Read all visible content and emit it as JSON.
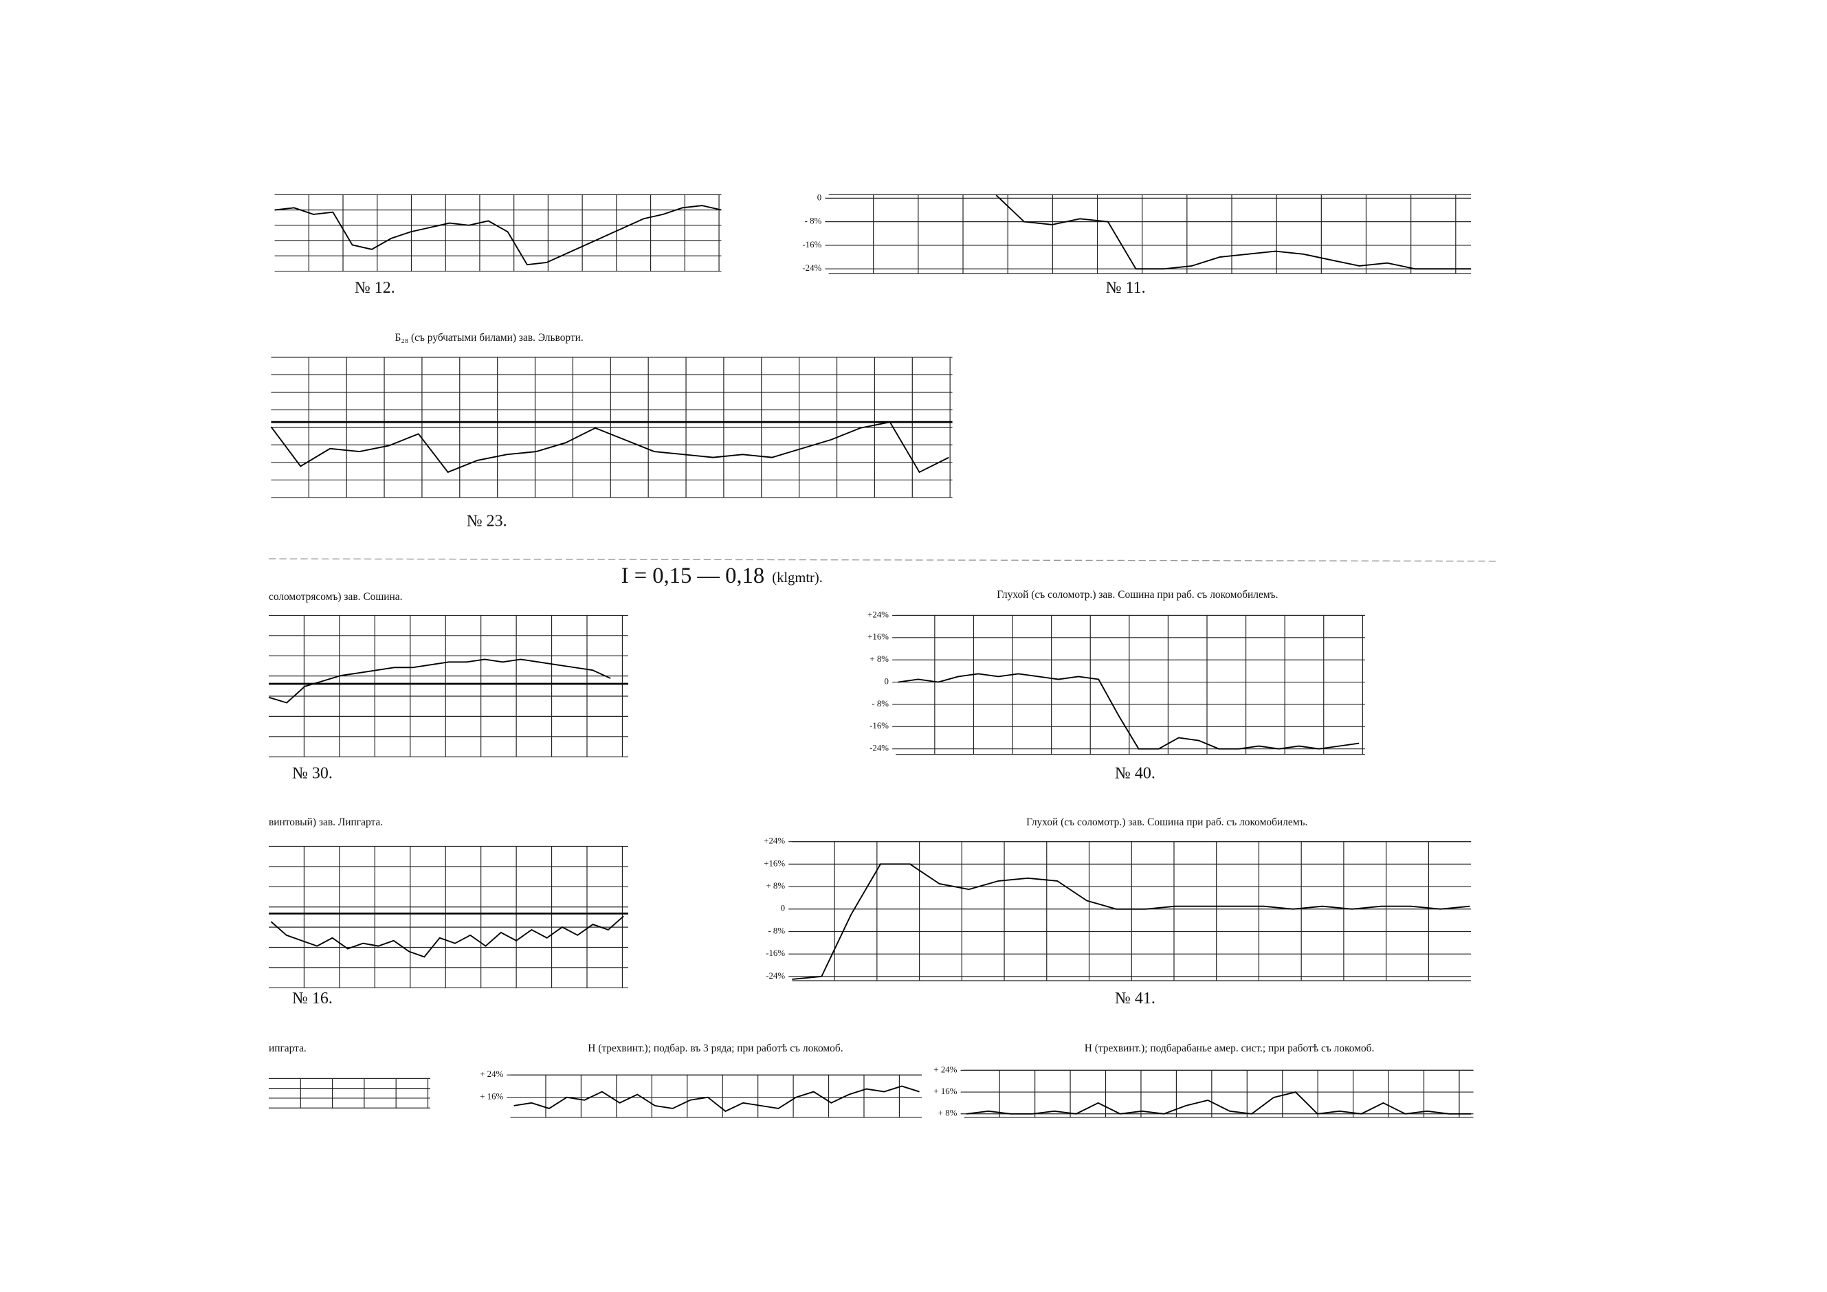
{
  "heading": "I = 0,15 — 0,18",
  "heading_unit": "(klgmtr).",
  "panels": [
    {
      "label": "№ 12.",
      "ylim": [
        -30,
        5
      ],
      "values": [
        -2,
        -1,
        -4,
        -3,
        -18,
        -20,
        -15,
        -12,
        -10,
        -8,
        -9,
        -7,
        -12,
        -27,
        -26,
        -22,
        -18,
        -14,
        -10,
        -6,
        -4,
        -1,
        0,
        -2
      ]
    },
    {
      "label": "№ 11.",
      "ylim": [
        -25.6,
        1.2
      ],
      "yticks": [
        0,
        {
          "value": -8,
          "label": "- 8%"
        },
        {
          "value": -16,
          "label": "-16%"
        },
        {
          "value": -24,
          "label": "-24%"
        }
      ],
      "values": [
        null,
        null,
        null,
        null,
        null,
        null,
        1,
        -8,
        -9,
        -7,
        -8,
        -24,
        -24,
        -23,
        -20,
        -19,
        -18,
        -19,
        -21,
        -23,
        -22,
        -24,
        -24,
        -24
      ]
    },
    {
      "label": "№ 23.",
      "caption": "Б₂₈ (съ рубчатыми билами) зав. Эльворти.",
      "ylim": [
        -25.6,
        22
      ],
      "values": [
        -1.6,
        -15,
        -9,
        -10,
        -8,
        -4,
        -17,
        -13,
        -11,
        -10,
        -7,
        -2,
        -6,
        -10,
        -11,
        -12,
        -11,
        -12,
        -9,
        -6,
        -2,
        0,
        -17,
        -12
      ]
    },
    {
      "label": "№ 30.",
      "caption": "соломотрясомъ) зав. Сошина.",
      "ylim": [
        -26.9,
        25.2
      ],
      "values": [
        -5,
        -7,
        -1,
        1,
        3,
        4,
        5,
        6,
        6,
        7,
        8,
        8,
        9,
        8,
        9,
        8,
        7,
        6,
        5,
        2
      ]
    },
    {
      "label": "№ 40.",
      "caption": "Глухой (съ соломотр.) зав. Сошина при раб. съ локомобилемъ.",
      "ylim": [
        -26,
        24
      ],
      "yticks": [
        {
          "value": 24,
          "label": "+24%"
        },
        {
          "value": 16,
          "label": "+16%"
        },
        {
          "value": 8,
          "label": "+ 8%"
        },
        0,
        {
          "value": -8,
          "label": "- 8%"
        },
        {
          "value": -16,
          "label": "-16%"
        },
        {
          "value": -24,
          "label": "-24%"
        }
      ],
      "values": [
        0,
        1,
        0,
        2,
        3,
        2,
        3,
        2,
        1,
        2,
        1,
        -12,
        -24,
        -24,
        -20,
        -21,
        -24,
        -24,
        -23,
        -24,
        -23,
        -24,
        -23,
        -22
      ]
    },
    {
      "label": "№ 16.",
      "caption": "винтовый) зав. Липгарта.",
      "ylim": [
        -27.4,
        24.8
      ],
      "values": [
        -3,
        -8,
        -10,
        -12,
        -9,
        -13,
        -11,
        -12,
        -10,
        -14,
        -16,
        -9,
        -11,
        -8,
        -12,
        -7,
        -10,
        -6,
        -9,
        -5,
        -8,
        -4,
        -6,
        -1
      ]
    },
    {
      "label": "№ 41.",
      "caption": "Глухой (съ соломотр.) зав. Сошина при раб. съ локомобилемъ.",
      "ylim": [
        -25.5,
        24
      ],
      "yticks": [
        {
          "value": 24,
          "label": "+24%"
        },
        {
          "value": 16,
          "label": "+16%"
        },
        {
          "value": 8,
          "label": "+ 8%"
        },
        0,
        {
          "value": -8,
          "label": "- 8%"
        },
        {
          "value": -16,
          "label": "-16%"
        },
        {
          "value": -24,
          "label": "-24%"
        }
      ],
      "values": [
        -25,
        -24,
        -2,
        16,
        16,
        9,
        7,
        10,
        11,
        10,
        3,
        0,
        0,
        1,
        1,
        1,
        1,
        0,
        1,
        0,
        1,
        1,
        0,
        1
      ]
    },
    {
      "caption": "ипгарта."
    },
    {
      "caption": "Н (трехвинт.); подбар. въ 3 ряда; при работѣ съ локомоб.",
      "ylim": [
        8.8,
        24
      ],
      "yticks": [
        {
          "value": 24,
          "label": "+ 24%"
        },
        {
          "value": 16,
          "label": "+ 16%"
        }
      ],
      "values": [
        13,
        14,
        12,
        16,
        15,
        18,
        14,
        17,
        13,
        12,
        15,
        16,
        11,
        14,
        13,
        12,
        16,
        18,
        14,
        17,
        19,
        18,
        20,
        18
      ]
    },
    {
      "caption": "Н (трехвинт.); подбарабанье амер. сист.; при работѣ съ локомоб.",
      "ylim": [
        6.7,
        24
      ],
      "yticks": [
        {
          "value": 24,
          "label": "+ 24%"
        },
        {
          "value": 16,
          "label": "+ 16%"
        },
        {
          "value": 8,
          "label": "+ 8%"
        }
      ],
      "values": [
        8,
        9,
        8,
        8,
        9,
        8,
        12,
        8,
        9,
        8,
        11,
        13,
        9,
        8,
        14,
        16,
        8,
        9,
        8,
        12,
        8,
        9,
        8,
        8
      ]
    }
  ]
}
